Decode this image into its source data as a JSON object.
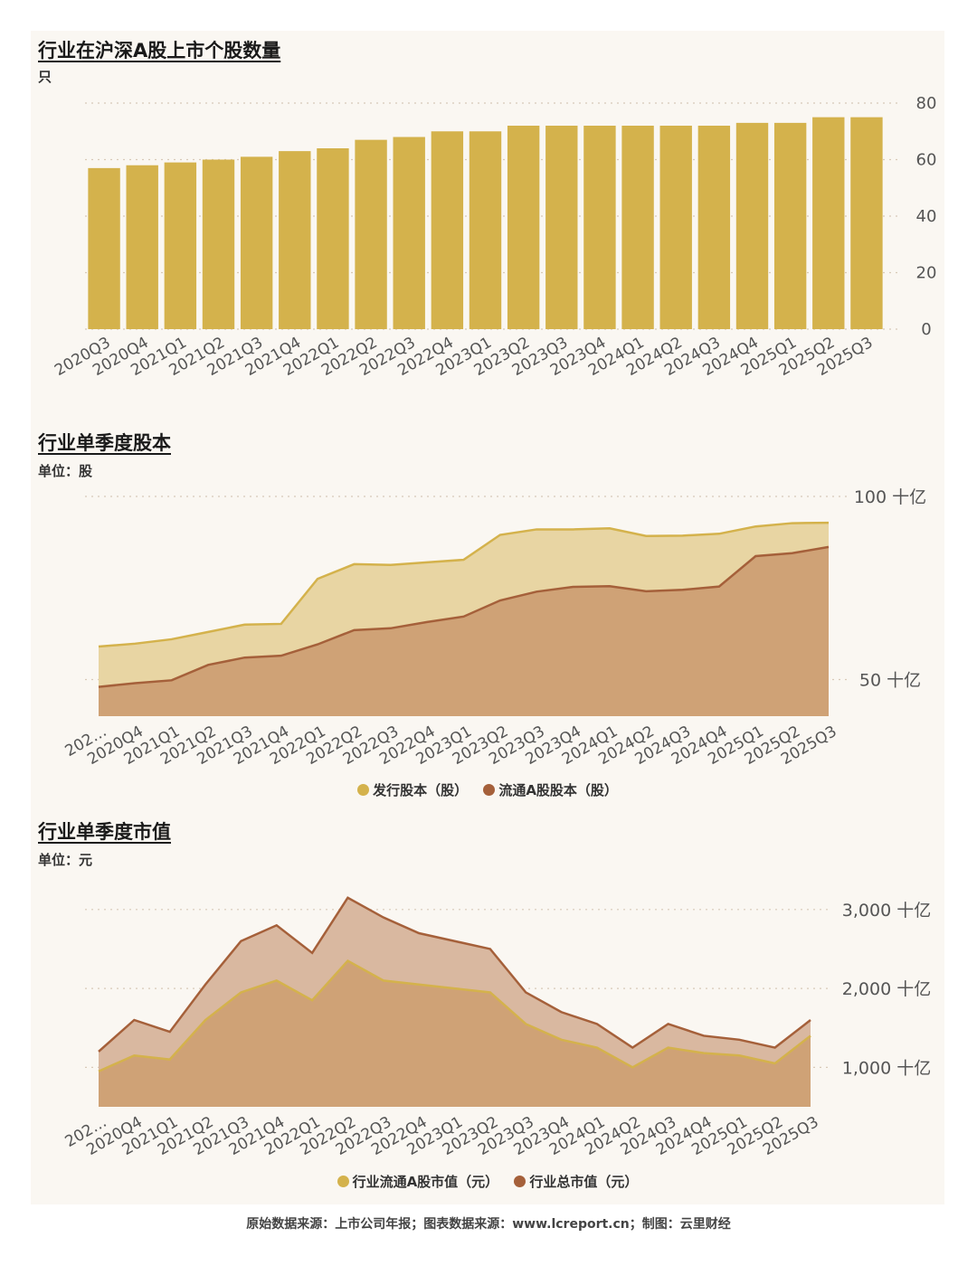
{
  "chart_data": [
    {
      "type": "bar",
      "title": "行业在沪深A股上市个股数量",
      "unit": "只",
      "categories": [
        "2020Q3",
        "2020Q4",
        "2021Q1",
        "2021Q2",
        "2021Q3",
        "2021Q4",
        "2022Q1",
        "2022Q2",
        "2022Q3",
        "2022Q4",
        "2023Q1",
        "2023Q2",
        "2023Q3",
        "2023Q4",
        "2024Q1",
        "2024Q2",
        "2024Q3",
        "2024Q4",
        "2025Q1",
        "2025Q2",
        "2025Q3"
      ],
      "values": [
        57,
        58,
        59,
        60,
        61,
        63,
        64,
        67,
        68,
        70,
        70,
        72,
        72,
        72,
        72,
        72,
        72,
        73,
        73,
        75,
        75
      ],
      "ylim": [
        0,
        80
      ],
      "yticks": [
        "0",
        "20",
        "40",
        "60",
        "80"
      ],
      "yaxis_position": "right",
      "grid": true,
      "color": "#d4b24c"
    },
    {
      "type": "area",
      "title": "行业单季度股本",
      "unit": "单位：股",
      "categories": [
        "202…",
        "2020Q4",
        "2021Q1",
        "2021Q2",
        "2021Q3",
        "2021Q4",
        "2022Q1",
        "2022Q2",
        "2022Q3",
        "2022Q4",
        "2023Q1",
        "2023Q2",
        "2023Q3",
        "2023Q4",
        "2024Q1",
        "2024Q2",
        "2024Q3",
        "2024Q4",
        "2025Q1",
        "2025Q2",
        "2025Q3"
      ],
      "series": [
        {
          "name": "发行股本（股）",
          "values": [
            59,
            59.8,
            61,
            63,
            65,
            65.2,
            77.5,
            81.5,
            81.3,
            82,
            82.7,
            89.5,
            91,
            91,
            91.3,
            89.2,
            89.3,
            89.8,
            91.8,
            92.7,
            92.8
          ],
          "color": "#d4b24c",
          "fill": "#e8d5a3"
        },
        {
          "name": "流通A股股本（股）",
          "values": [
            48,
            49,
            49.8,
            54,
            56,
            56.5,
            59.6,
            63.5,
            64,
            65.7,
            67.2,
            71.6,
            74,
            75.3,
            75.5,
            74.1,
            74.5,
            75.4,
            83.7,
            84.5,
            86.2
          ],
          "color": "#a5603a",
          "fill": "#cfa276"
        }
      ],
      "ylim": [
        40,
        100
      ],
      "yticks": [
        "50 十亿",
        "100 十亿"
      ],
      "ytick_values": [
        50,
        100
      ],
      "yaxis_position": "right",
      "legend_position": "bottom",
      "grid": true
    },
    {
      "type": "area",
      "title": "行业单季度市值",
      "unit": "单位：元",
      "categories": [
        "202…",
        "2020Q4",
        "2021Q1",
        "2021Q2",
        "2021Q3",
        "2021Q4",
        "2022Q1",
        "2022Q2",
        "2022Q3",
        "2022Q4",
        "2023Q1",
        "2023Q2",
        "2023Q3",
        "2023Q4",
        "2024Q1",
        "2024Q2",
        "2024Q3",
        "2024Q4",
        "2025Q1",
        "2025Q2",
        "2025Q3"
      ],
      "series": [
        {
          "name": "行业总市值（元）",
          "values": [
            1200,
            1600,
            1450,
            2050,
            2600,
            2800,
            2450,
            3150,
            2900,
            2700,
            2600,
            2500,
            1950,
            1700,
            1550,
            1250,
            1550,
            1400,
            1350,
            1250,
            1600
          ],
          "color": "#a5603a",
          "fill": "#d9b8a0"
        },
        {
          "name": "行业流通A股市值（元）",
          "values": [
            950,
            1150,
            1100,
            1600,
            1950,
            2100,
            1850,
            2350,
            2100,
            2050,
            2000,
            1950,
            1550,
            1350,
            1250,
            1000,
            1250,
            1180,
            1150,
            1050,
            1400
          ],
          "color": "#d4b24c",
          "fill": "#cfa276"
        }
      ],
      "ylim": [
        500,
        3250
      ],
      "yticks": [
        "1,000 十亿",
        "2,000 十亿",
        "3,000 十亿"
      ],
      "ytick_values": [
        1000,
        2000,
        3000
      ],
      "yaxis_position": "right",
      "legend_position": "bottom",
      "grid": true
    }
  ],
  "legends": {
    "chart2": [
      {
        "label": "发行股本（股）",
        "color": "#d4b24c"
      },
      {
        "label": "流通A股股本（股）",
        "color": "#a5603a"
      }
    ],
    "chart3": [
      {
        "label": "行业流通A股市值（元）",
        "color": "#d4b24c"
      },
      {
        "label": "行业总市值（元）",
        "color": "#a5603a"
      }
    ]
  },
  "footer": "原始数据来源：上市公司年报；图表数据来源：www.lcreport.cn；制图：云里财经"
}
